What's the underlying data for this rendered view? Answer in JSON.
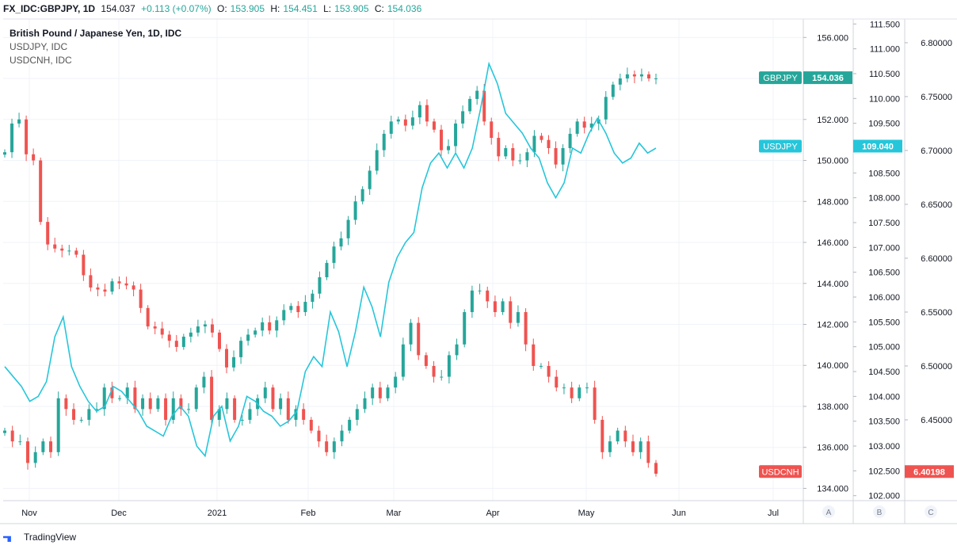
{
  "header": {
    "symbol": "FX_IDC:GBPJPY, 1D",
    "last": "154.037",
    "change": "+0.113 (+0.07%)",
    "o_label": "O:",
    "o": "153.905",
    "h_label": "H:",
    "h": "154.451",
    "l_label": "L:",
    "l": "153.905",
    "c_label": "C:",
    "c": "154.036"
  },
  "legend": {
    "main": "British Pound / Japanese Yen, 1D, IDC",
    "s2": "USDJPY, IDC",
    "s3": "USDCNH, IDC"
  },
  "colors": {
    "up": "#26a69a",
    "down": "#ef5350",
    "usdjpy": "#26c6da",
    "gbpjpy_badge": "#26a69a",
    "usdcnh_badge": "#ef5350",
    "grid": "#f0f3fa"
  },
  "footer": {
    "brand": "TradingView",
    "brand_icon": "tradingview-logo-icon"
  },
  "scale_buttons": [
    "A",
    "B",
    "C"
  ],
  "chart_data": {
    "type": "line",
    "x_labels": [
      "Nov",
      "Dec",
      "2021",
      "Feb",
      "Mar",
      "Apr",
      "May",
      "Jun",
      "Jul"
    ],
    "axes": {
      "A": {
        "ticks": [
          "156.000",
          "154.000",
          "152.000",
          "150.000",
          "148.000",
          "146.000",
          "144.000",
          "142.000",
          "140.000",
          "138.000",
          "136.000",
          "134.000"
        ],
        "range": [
          133.4,
          156.9
        ]
      },
      "B": {
        "ticks": [
          "111.500",
          "111.000",
          "110.500",
          "110.000",
          "109.500",
          "109.000",
          "108.500",
          "108.000",
          "107.500",
          "107.000",
          "106.500",
          "106.000",
          "105.500",
          "105.000",
          "104.500",
          "104.000",
          "103.500",
          "103.000",
          "102.500",
          "102.000"
        ],
        "range": [
          101.9,
          111.6
        ]
      },
      "C": {
        "ticks": [
          "6.80000",
          "6.75000",
          "6.70000",
          "6.65000",
          "6.60000",
          "6.55000",
          "6.50000",
          "6.45000",
          "6.40000"
        ],
        "range": [
          6.375,
          6.822
        ]
      }
    },
    "series": [
      {
        "name": "GBPJPY",
        "kind": "candle",
        "axis": "A",
        "badge": "GBPJPY",
        "badge_value": "154.036",
        "values": [
          150.4,
          151.8,
          152.0,
          150.3,
          150.0,
          147.0,
          145.9,
          145.7,
          145.6,
          145.6,
          145.4,
          144.4,
          143.8,
          143.7,
          143.6,
          144.1,
          144.0,
          143.9,
          143.7,
          142.8,
          141.9,
          141.8,
          141.5,
          141.2,
          140.9,
          141.4,
          141.6,
          141.9,
          142.0,
          141.6,
          140.8,
          139.9,
          140.4,
          141.2,
          141.5,
          141.7,
          142.1,
          141.7,
          142.2,
          142.7,
          142.9,
          142.6,
          143.1,
          143.5,
          144.3,
          145.0,
          145.8,
          146.2,
          147.1,
          148.0,
          148.6,
          149.5,
          150.5,
          151.3,
          151.9,
          152.0,
          151.7,
          152.1,
          152.7,
          151.9,
          151.5,
          150.5,
          150.7,
          151.8,
          152.4,
          153.0,
          153.4,
          151.9,
          151.1,
          150.2,
          150.6,
          150.0,
          150.0,
          150.4,
          151.2,
          151.0,
          150.6,
          149.8,
          150.6,
          151.3,
          151.9,
          151.6,
          151.8,
          152.0,
          153.1,
          153.7,
          154.0,
          154.2,
          154.1,
          154.2,
          154.0,
          154.0
        ]
      },
      {
        "name": "USDJPY",
        "kind": "line",
        "axis": "B",
        "badge": "USDJPY",
        "badge_value": "109.040",
        "values": [
          104.6,
          104.4,
          104.2,
          103.9,
          104.0,
          104.3,
          105.2,
          105.6,
          104.6,
          104.2,
          103.9,
          103.7,
          103.8,
          104.2,
          104.1,
          103.9,
          103.7,
          103.4,
          103.3,
          103.2,
          103.6,
          103.8,
          103.6,
          103.0,
          102.8,
          103.6,
          103.8,
          103.1,
          103.4,
          104.0,
          103.9,
          103.7,
          103.6,
          103.4,
          103.5,
          103.7,
          104.5,
          104.8,
          104.6,
          105.7,
          105.3,
          104.6,
          105.3,
          106.2,
          105.8,
          105.2,
          106.3,
          106.8,
          107.1,
          107.3,
          108.2,
          108.7,
          108.9,
          108.6,
          108.9,
          108.6,
          109.0,
          109.8,
          110.7,
          110.3,
          109.7,
          109.5,
          109.3,
          109.0,
          108.8,
          108.3,
          108.0,
          108.3,
          109.0,
          108.9,
          109.3,
          109.6,
          109.3,
          108.9,
          108.7,
          108.8,
          109.1,
          108.9,
          109.0
        ]
      },
      {
        "name": "USDCNH",
        "kind": "candle",
        "axis": "C",
        "badge": "USDCNH",
        "badge_value": "6.40198",
        "values": [
          6.44,
          6.43,
          6.43,
          6.41,
          6.42,
          6.43,
          6.42,
          6.47,
          6.46,
          6.45,
          6.45,
          6.46,
          6.46,
          6.48,
          6.47,
          6.47,
          6.48,
          6.46,
          6.47,
          6.46,
          6.47,
          6.45,
          6.47,
          6.46,
          6.46,
          6.48,
          6.49,
          6.45,
          6.46,
          6.47,
          6.45,
          6.45,
          6.46,
          6.47,
          6.48,
          6.46,
          6.47,
          6.45,
          6.46,
          6.45,
          6.44,
          6.43,
          6.42,
          6.43,
          6.44,
          6.45,
          6.46,
          6.47,
          6.48,
          6.47,
          6.48,
          6.49,
          6.52,
          6.54,
          6.51,
          6.5,
          6.49,
          6.49,
          6.51,
          6.52,
          6.55,
          6.57,
          6.57,
          6.56,
          6.55,
          6.56,
          6.54,
          6.55,
          6.52,
          6.5,
          6.5,
          6.49,
          6.48,
          6.48,
          6.47,
          6.48,
          6.48,
          6.45,
          6.42,
          6.43,
          6.44,
          6.43,
          6.42,
          6.43,
          6.41,
          6.4
        ]
      }
    ]
  }
}
